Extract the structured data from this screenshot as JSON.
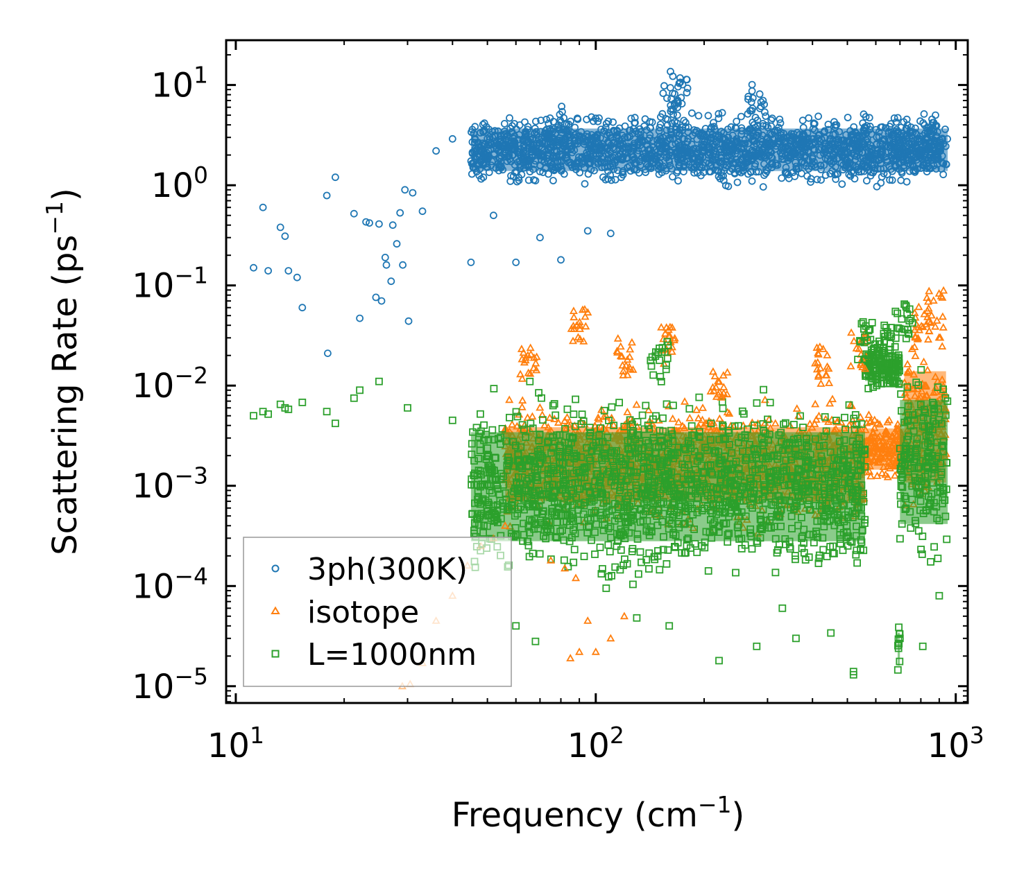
{
  "chart_data": {
    "type": "scatter",
    "xscale": "log",
    "yscale": "log",
    "xlim": [
      9.4,
      1080
    ],
    "ylim": [
      6.8e-06,
      28
    ],
    "xlabel": "Frequency (cm",
    "xlabel_sup": "−1",
    "xlabel_end": ")",
    "ylabel": "Scattering Rate (ps",
    "ylabel_sup": "−1",
    "ylabel_end": ")",
    "x_ticks": [
      {
        "value": 10,
        "base": "10",
        "exp": "1"
      },
      {
        "value": 100,
        "base": "10",
        "exp": "2"
      },
      {
        "value": 1000,
        "base": "10",
        "exp": "3"
      }
    ],
    "y_ticks": [
      {
        "value": 10,
        "base": "10",
        "exp": "1"
      },
      {
        "value": 1,
        "base": "10",
        "exp": "0"
      },
      {
        "value": 0.1,
        "base": "10",
        "exp": "−1"
      },
      {
        "value": 0.01,
        "base": "10",
        "exp": "−2"
      },
      {
        "value": 0.001,
        "base": "10",
        "exp": "−3"
      },
      {
        "value": 0.0001,
        "base": "10",
        "exp": "−4"
      },
      {
        "value": 1e-05,
        "base": "10",
        "exp": "−5"
      }
    ],
    "legend_position": "lower-left",
    "series": [
      {
        "name": "3ph(300K)",
        "marker": "circle",
        "color": "#1f77b4",
        "points": [
          [
            11.2,
            0.15
          ],
          [
            11.9,
            0.6
          ],
          [
            12.3,
            0.14
          ],
          [
            13.3,
            0.38
          ],
          [
            13.7,
            0.31
          ],
          [
            14.0,
            0.14
          ],
          [
            14.8,
            0.12
          ],
          [
            15.3,
            0.06
          ],
          [
            17.9,
            0.79
          ],
          [
            18.0,
            0.021
          ],
          [
            18.9,
            1.2
          ],
          [
            21.3,
            0.52
          ],
          [
            22.1,
            0.047
          ],
          [
            23.0,
            0.43
          ],
          [
            23.5,
            0.42
          ],
          [
            24.5,
            0.076
          ],
          [
            25.0,
            0.41
          ],
          [
            25.4,
            0.07
          ],
          [
            26.0,
            0.19
          ],
          [
            26.2,
            0.16
          ],
          [
            27.0,
            0.11
          ],
          [
            27.3,
            0.4
          ],
          [
            28.0,
            0.26
          ],
          [
            28.6,
            0.53
          ],
          [
            29.1,
            0.16
          ],
          [
            29.5,
            0.9
          ],
          [
            30.2,
            0.044
          ],
          [
            31.0,
            0.84
          ],
          [
            33.0,
            0.55
          ],
          [
            36.0,
            2.2
          ],
          [
            40.0,
            2.9
          ],
          [
            45.0,
            0.17
          ],
          [
            52.0,
            0.5
          ],
          [
            60.0,
            0.17
          ],
          [
            70.0,
            0.3
          ],
          [
            80.0,
            0.18
          ],
          [
            95.0,
            0.35
          ],
          [
            110.0,
            0.33
          ]
        ],
        "bands": [
          {
            "from": 45,
            "to": 950,
            "y_min": 0.85,
            "y_max": 6.0
          }
        ],
        "peaks": [
          [
            80,
            6.5
          ],
          [
            160,
            11
          ],
          [
            170,
            14
          ],
          [
            280,
            11
          ],
          [
            560,
            5.2
          ],
          [
            710,
            5.0
          ],
          [
            860,
            5.5
          ]
        ]
      },
      {
        "name": "isotope",
        "marker": "triangle",
        "color": "#ff7f0e",
        "points": [
          [
            29.0,
            1e-05
          ],
          [
            30.5,
            1.05e-05
          ],
          [
            33.0,
            1.7e-05
          ],
          [
            36.0,
            4.5e-05
          ],
          [
            40.0,
            8e-05
          ],
          [
            44.0,
            0.00016
          ],
          [
            48.0,
            0.00025
          ],
          [
            52.0,
            0.0003
          ],
          [
            56.0,
            0.0004
          ],
          [
            75.0,
            0.00018
          ],
          [
            82.0,
            0.00015
          ],
          [
            88.0,
            0.00012
          ],
          [
            90.0,
            2.2e-05
          ],
          [
            95.0,
            4.5e-05
          ],
          [
            100.0,
            2.2e-05
          ],
          [
            85.0,
            1.9e-05
          ],
          [
            110.0,
            3e-05
          ],
          [
            120.0,
            5e-05
          ]
        ],
        "bands": [
          {
            "from": 56,
            "to": 560,
            "y_min": 0.0003,
            "y_max": 0.009
          },
          {
            "from": 560,
            "to": 720,
            "y_min": 0.0009,
            "y_max": 0.006
          },
          {
            "from": 720,
            "to": 940,
            "y_min": 0.0003,
            "y_max": 0.05
          }
        ],
        "peaks": [
          [
            65,
            0.025
          ],
          [
            90,
            0.06
          ],
          [
            120,
            0.03
          ],
          [
            160,
            0.04
          ],
          [
            220,
            0.014
          ],
          [
            420,
            0.025
          ],
          [
            540,
            0.035
          ],
          [
            800,
            0.07
          ],
          [
            880,
            0.095
          ]
        ]
      },
      {
        "name": "L=1000nm",
        "marker": "square",
        "color": "#2ca02c",
        "points": [
          [
            11.2,
            0.005
          ],
          [
            11.9,
            0.0055
          ],
          [
            12.3,
            0.0052
          ],
          [
            13.3,
            0.0065
          ],
          [
            13.7,
            0.006
          ],
          [
            14.0,
            0.0058
          ],
          [
            15.3,
            0.0068
          ],
          [
            17.9,
            0.0055
          ],
          [
            18.9,
            0.0042
          ],
          [
            21.3,
            0.0075
          ],
          [
            22.1,
            0.009
          ],
          [
            25.0,
            0.011
          ],
          [
            30.0,
            0.006
          ],
          [
            40.0,
            0.0045
          ],
          [
            48.0,
            0.0035
          ],
          [
            60.0,
            4e-05
          ],
          [
            68.0,
            2.8e-05
          ],
          [
            130.0,
            4.8e-05
          ],
          [
            160.0,
            4e-05
          ],
          [
            220.0,
            1.8e-05
          ],
          [
            280.0,
            2.5e-05
          ],
          [
            330.0,
            6e-05
          ],
          [
            360.0,
            3e-05
          ],
          [
            450.0,
            3.4e-05
          ],
          [
            520.0,
            1.4e-05
          ],
          [
            520.0,
            1.3e-05
          ],
          [
            700.0,
            3e-05
          ],
          [
            810.0,
            2.5e-05
          ],
          [
            900.0,
            8e-05
          ],
          [
            900.0,
            0.00045
          ],
          [
            720.0,
            0.065
          ],
          [
            680.0,
            0.055
          ]
        ],
        "bands": [
          {
            "from": 45,
            "to": 560,
            "y_min": 8e-05,
            "y_max": 0.012
          },
          {
            "from": 560,
            "to": 700,
            "y_min": 0.008,
            "y_max": 0.03
          },
          {
            "from": 700,
            "to": 950,
            "y_min": 0.0001,
            "y_max": 0.03
          },
          {
            "from": 690,
            "to": 700,
            "y_min": 1.1e-05,
            "y_max": 5e-05
          }
        ],
        "peaks": [
          [
            560,
            0.045
          ],
          [
            650,
            0.04
          ],
          [
            720,
            0.066
          ],
          [
            150,
            0.028
          ]
        ]
      }
    ]
  }
}
